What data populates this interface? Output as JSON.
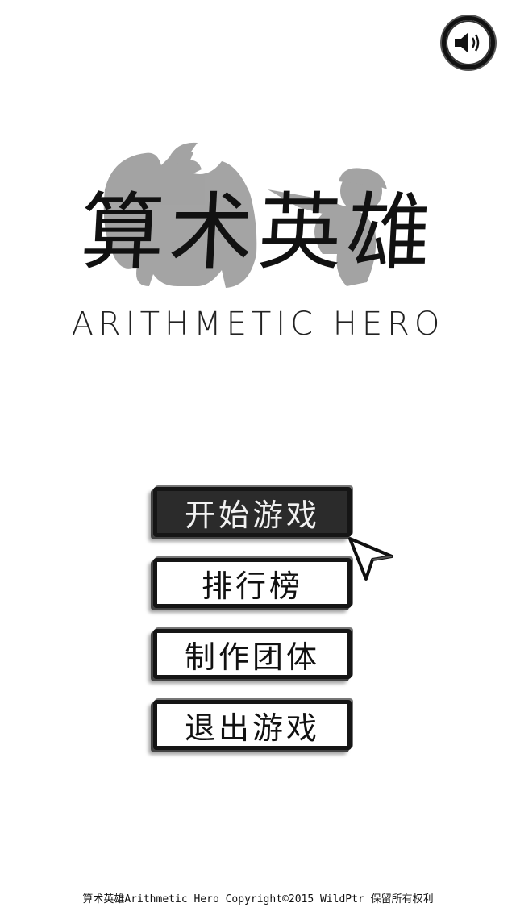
{
  "sound": {
    "icon": "speaker-icon",
    "state": "on"
  },
  "title": {
    "chinese": "算术英雄",
    "english": "ARITHMETIC HERO"
  },
  "menu": {
    "items": [
      {
        "label": "开始游戏",
        "selected": true
      },
      {
        "label": "排行榜",
        "selected": false
      },
      {
        "label": "制作团体",
        "selected": false
      },
      {
        "label": "退出游戏",
        "selected": false
      }
    ]
  },
  "footer": {
    "copyright": "算术英雄Arithmetic Hero Copyright©2015 WildPtr 保留所有权利"
  },
  "colors": {
    "background": "#ffffff",
    "ink": "#111111",
    "silhouette": "#9a9a9a",
    "active_button": "#2b2b2b"
  }
}
